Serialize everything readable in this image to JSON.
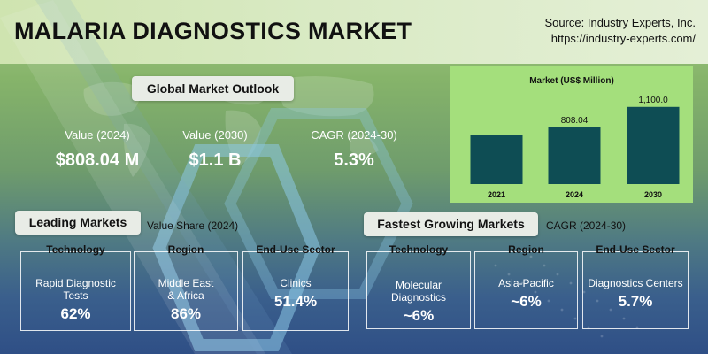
{
  "header": {
    "title": "MALARIA DIAGNOSTICS MARKET",
    "source_line1": "Source: Industry Experts, Inc.",
    "source_line2": "https://industry-experts.com/"
  },
  "outlook": {
    "title": "Global Market Outlook",
    "kpis": [
      {
        "label": "Value (2024)",
        "value": "$808.04 M"
      },
      {
        "label": "Value (2030)",
        "value": "$1.1 B"
      },
      {
        "label": "CAGR (2024-30)",
        "value": "5.3%"
      }
    ]
  },
  "chart_data": {
    "type": "bar",
    "title": "Market (US$ Million)",
    "categories": [
      "2021",
      "2024",
      "2030"
    ],
    "values": [
      null,
      808.04,
      1100.0
    ],
    "data_labels": [
      "",
      "808.04",
      "1,100.0"
    ],
    "estimated_values": [
      700,
      808.04,
      1100.0
    ],
    "ylim": [
      0,
      1400
    ],
    "bar_color": "#0e4d54",
    "grid": false
  },
  "leading": {
    "title": "Leading Markets",
    "subtitle": "Value Share (2024)",
    "cards": [
      {
        "head": "Technology",
        "desc": "Rapid Diagnostic Tests",
        "value": "62%"
      },
      {
        "head": "Region",
        "desc": "Middle East & Africa",
        "value": "86%"
      },
      {
        "head": "End-Use Sector",
        "desc": "Clinics",
        "value": "51.4%"
      }
    ]
  },
  "fastest": {
    "title": "Fastest Growing Markets",
    "subtitle": "CAGR (2024-30)",
    "cards": [
      {
        "head": "Technology",
        "desc": "Molecular Diagnostics",
        "value": "~6%"
      },
      {
        "head": "Region",
        "desc": "Asia-Pacific",
        "value": "~6%"
      },
      {
        "head": "End-Use Sector",
        "desc": "Diagnostics Centers",
        "value": "5.7%"
      }
    ]
  },
  "colors": {
    "chart_bg": "#a4df7c",
    "bar": "#0e4d54"
  }
}
